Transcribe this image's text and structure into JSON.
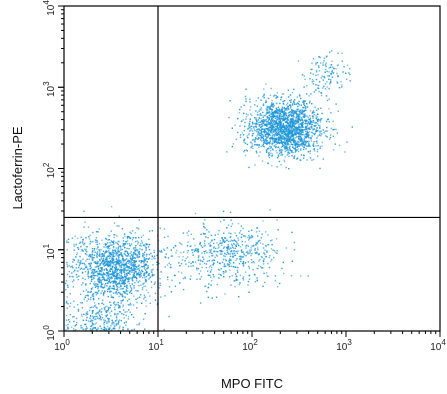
{
  "chart_data": {
    "type": "scatter",
    "title": "",
    "xlabel": "MPO FITC",
    "ylabel": "Lactoferrin-PE",
    "xscale": "log",
    "yscale": "log",
    "xlim": [
      1,
      10000
    ],
    "ylim": [
      1,
      10000
    ],
    "xticks": [
      1,
      10,
      100,
      1000,
      10000
    ],
    "yticks": [
      1,
      10,
      100,
      1000,
      10000
    ],
    "tick_labels": [
      "10^0",
      "10^1",
      "10^2",
      "10^3",
      "10^4"
    ],
    "gates": {
      "x": 10,
      "y": 25
    },
    "grid": false,
    "legend": "none",
    "point_color": "#1e96d8",
    "populations": [
      {
        "center": [
          3.5,
          6
        ],
        "spread_decades": [
          0.22,
          0.2
        ],
        "count": 1400
      },
      {
        "center": [
          220,
          320
        ],
        "spread_decades": [
          0.2,
          0.17
        ],
        "count": 1800
      },
      {
        "center": [
          55,
          9
        ],
        "spread_decades": [
          0.28,
          0.2
        ],
        "count": 550
      },
      {
        "center": [
          2.5,
          1.4
        ],
        "spread_decades": [
          0.2,
          0.12
        ],
        "count": 250
      },
      {
        "center": [
          600,
          1500
        ],
        "spread_decades": [
          0.12,
          0.15
        ],
        "count": 120
      }
    ]
  }
}
